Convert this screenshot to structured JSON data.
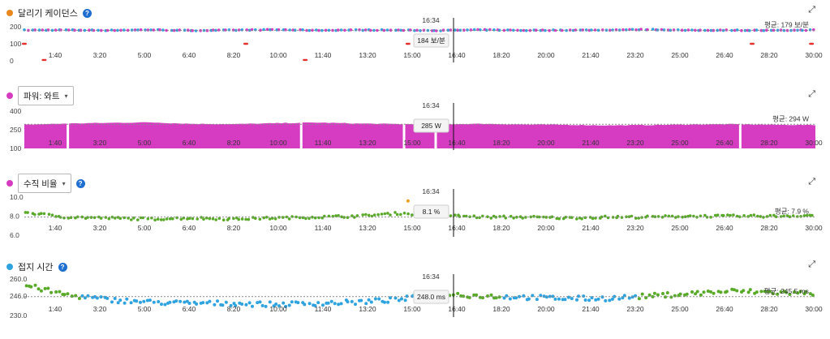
{
  "x_ticks": [
    "1:40",
    "3:20",
    "5:00",
    "6:40",
    "8:20",
    "10:00",
    "11:40",
    "13:20",
    "15:00",
    "16:40",
    "18:20",
    "20:00",
    "21:40",
    "23:20",
    "25:00",
    "26:40",
    "28:20",
    "30:00"
  ],
  "cursor": {
    "time": "16:34"
  },
  "colors": {
    "cadence_dot": "#e8871f",
    "power": "#d63cc2",
    "vr_green": "#5aaa2a",
    "gct_blue": "#2fa3e0",
    "gct_green": "#5aaa2a",
    "red": "#e53030",
    "orange": "#f0a020"
  },
  "panels": {
    "cadence": {
      "title": "달리기 케이던스",
      "avg_label": "평균: 179 보/분",
      "tooltip_value": "184 보/분"
    },
    "power": {
      "select_label": "파워: 와트",
      "avg_label": "평균: 294 W",
      "tooltip_value": "285 W"
    },
    "vr": {
      "select_label": "수직 비율",
      "avg_label": "평균: 7.9 %",
      "tooltip_value": "8.1 %"
    },
    "gct": {
      "title": "접지 시간",
      "avg_label": "평균: 245.5 ms",
      "tooltip_value": "248.0 ms"
    }
  },
  "chart_data": [
    {
      "type": "scatter",
      "series_label": "달리기 케이던스",
      "y_ticks": [
        "200",
        "100",
        "0"
      ],
      "ylim": [
        0,
        200
      ],
      "y": [
        180,
        181,
        179,
        182,
        178,
        180,
        183,
        179,
        181,
        180,
        178,
        182,
        179,
        180,
        181,
        184,
        179,
        180,
        178,
        181
      ],
      "avg": 179,
      "cursor_value": 184
    },
    {
      "type": "area",
      "series_label": "파워: 와트",
      "y_ticks": [
        "400",
        "250",
        "100"
      ],
      "ylim": [
        100,
        400
      ],
      "y": [
        290,
        300,
        305,
        310,
        298,
        295,
        302,
        308,
        300,
        296,
        294,
        298,
        292,
        290,
        285,
        288,
        292,
        295,
        290,
        288
      ],
      "avg": 294,
      "cursor_value": 285
    },
    {
      "type": "scatter",
      "series_label": "수직 비율",
      "y_ticks": [
        "10.0",
        "8.0",
        "6.0"
      ],
      "ylim": [
        6,
        10
      ],
      "y": [
        8.4,
        7.9,
        7.8,
        7.7,
        7.8,
        7.7,
        7.8,
        7.9,
        8.0,
        8.3,
        8.1,
        7.9,
        7.9,
        7.8,
        7.9,
        7.9,
        8.0,
        8.0,
        8.0,
        8.1
      ],
      "avg": 7.9,
      "cursor_value": 8.1
    },
    {
      "type": "scatter",
      "series_label": "접지 시간",
      "y_ticks": [
        "260.0",
        "246.0",
        "230.0"
      ],
      "ylim": [
        230,
        260
      ],
      "y": [
        255,
        247,
        243,
        241,
        240,
        240,
        239,
        240,
        241,
        243,
        248,
        246,
        245,
        244,
        244,
        246,
        248,
        250,
        249,
        248
      ],
      "avg": 245.5,
      "cursor_value": 248.0
    }
  ]
}
